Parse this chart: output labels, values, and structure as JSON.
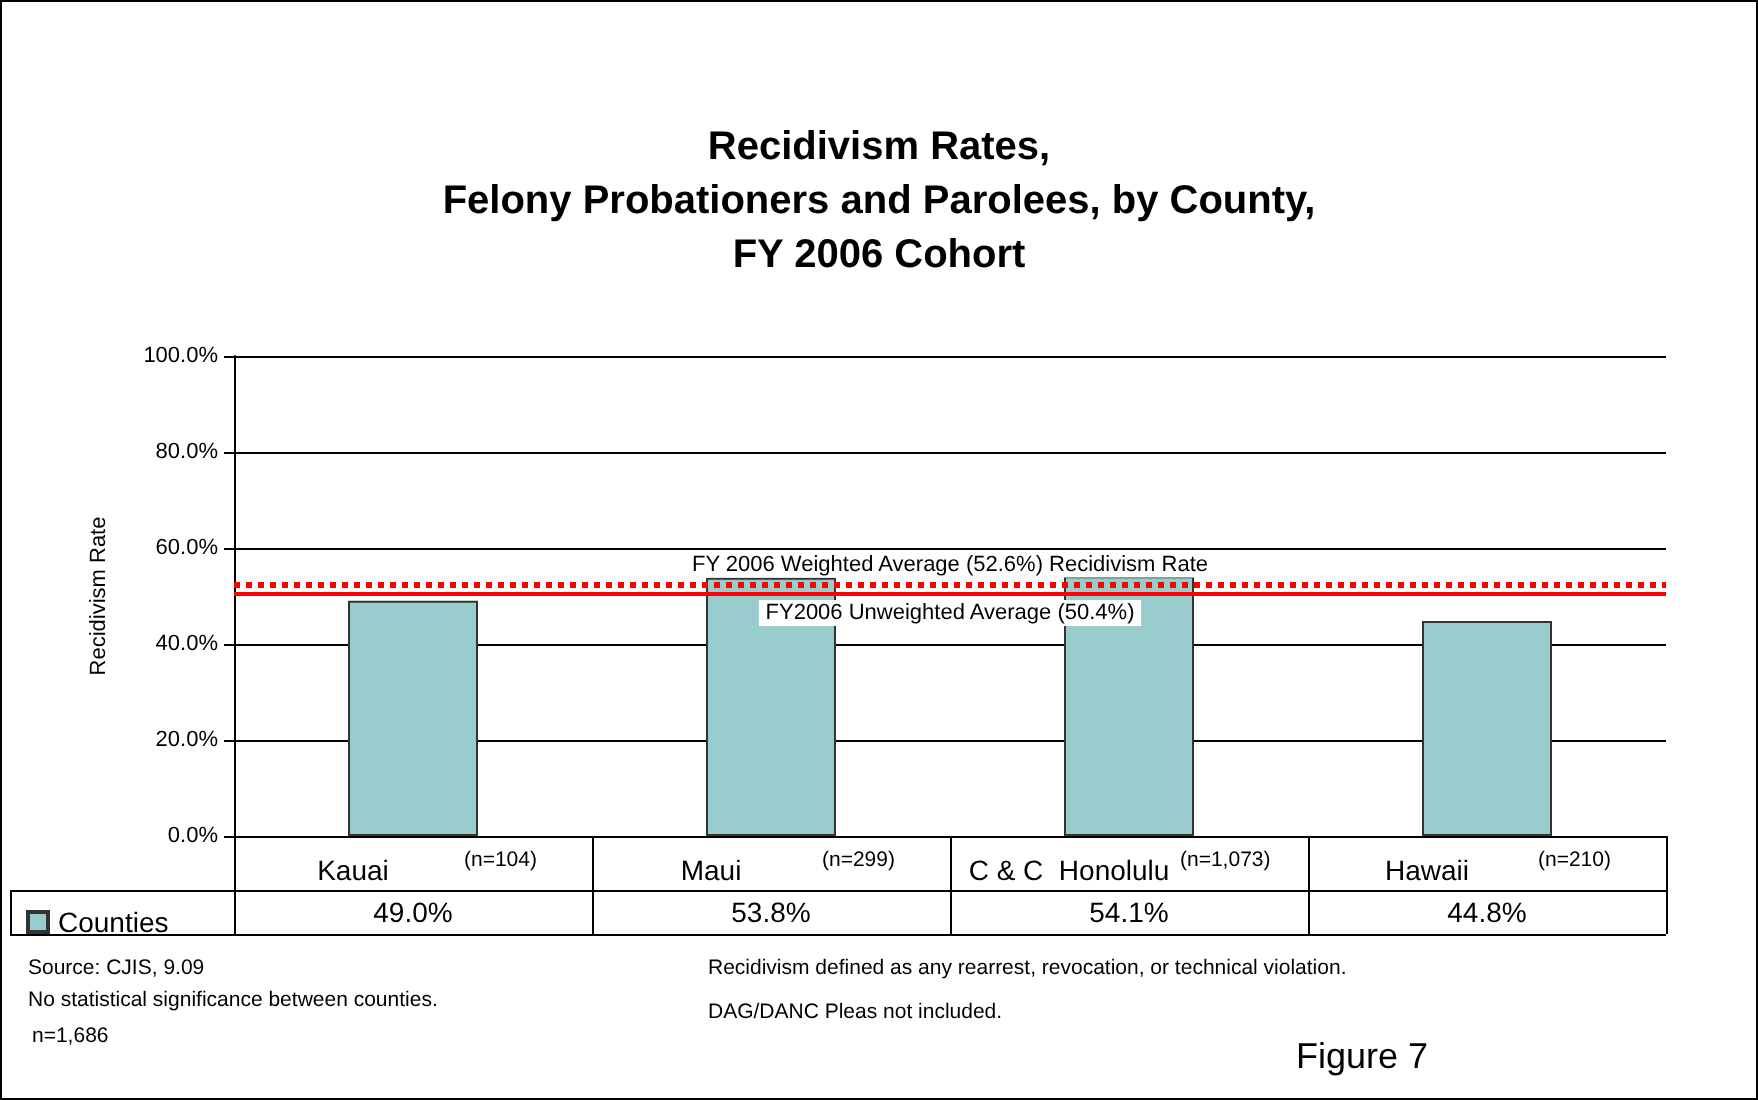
{
  "chart_data": {
    "type": "bar",
    "title": "Recidivism Rates,\nFelony Probationers and Parolees, by County,\nFY 2006 Cohort",
    "ylabel": "Recidivism Rate",
    "categories": [
      "Kauai",
      "Maui",
      "C & C  Honolulu",
      "Hawaii"
    ],
    "series": [
      {
        "name": "Counties",
        "color": "#99cccc",
        "values": [
          49.0,
          53.8,
          54.1,
          44.8
        ],
        "value_labels": [
          "49.0%",
          "53.8%",
          "54.1%",
          "44.8%"
        ]
      }
    ],
    "ylim": [
      0,
      100
    ],
    "yticks": [
      {
        "value": 0,
        "label": "0.0%"
      },
      {
        "value": 20,
        "label": "20.0%"
      },
      {
        "value": 40,
        "label": "40.0%"
      },
      {
        "value": 60,
        "label": "60.0%"
      },
      {
        "value": 80,
        "label": "80.0%"
      },
      {
        "value": 100,
        "label": "100.0%"
      }
    ],
    "grid": "y",
    "legend": "bottom left",
    "ref_lines": [
      {
        "axis": "y",
        "value": 52.6,
        "label": "FY 2006 Weighted Average (52.6%) Recidivism Rate",
        "color": "#ff0000",
        "line_style": "dotted"
      },
      {
        "axis": "y",
        "value": 50.4,
        "label": "FY2006 Unweighted Average (50.4%)",
        "color": "#ff0000",
        "line_style": "solid"
      }
    ],
    "annotations": [
      "(n=104)",
      "(n=299)",
      "(n=1,073)",
      "(n=210)",
      "Source: CJIS, 9.09",
      "No statistical significance between counties.",
      "n=1,686",
      "Recidivism defined as any rearrest, revocation, or technical violation.",
      "DAG/DANC Pleas not included.",
      "Figure 7"
    ]
  }
}
